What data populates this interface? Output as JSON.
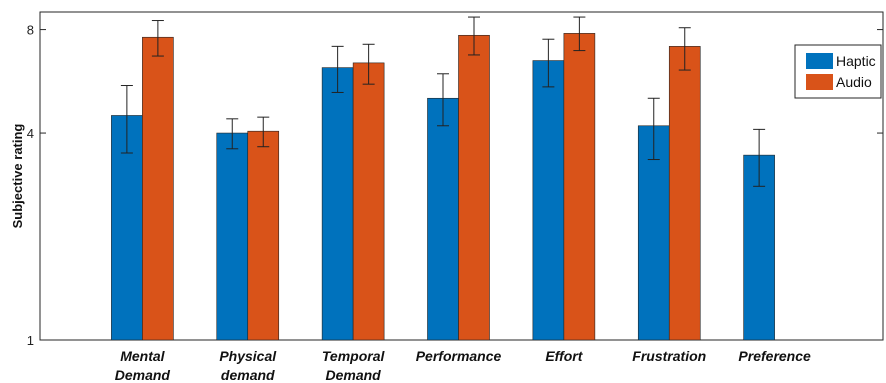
{
  "chart_data": {
    "type": "bar",
    "ylabel": "Subjective rating",
    "xlabel": "",
    "ylim": [
      1,
      9
    ],
    "yscale": "log",
    "yticks": [
      1,
      4,
      8
    ],
    "ytick_labels": [
      "1",
      "4",
      "8"
    ],
    "grid": false,
    "legend_position": "top-right",
    "categories": [
      [
        "Mental",
        "Demand"
      ],
      [
        "Physical",
        "demand"
      ],
      [
        "Temporal",
        "Demand"
      ],
      [
        "Performance"
      ],
      [
        "Effort"
      ],
      [
        "Frustration"
      ],
      [
        "Preference"
      ]
    ],
    "series": [
      {
        "name": "Haptic",
        "color": "#0072BD",
        "values": [
          4.5,
          4.0,
          6.2,
          5.05,
          6.5,
          4.2,
          3.45
        ],
        "error_low": [
          3.5,
          3.6,
          5.25,
          4.2,
          5.45,
          3.35,
          2.8
        ],
        "error_high": [
          5.5,
          4.4,
          7.15,
          5.95,
          7.5,
          5.05,
          4.1
        ]
      },
      {
        "name": "Audio",
        "color": "#D95319",
        "values": [
          7.6,
          4.05,
          6.4,
          7.7,
          7.8,
          7.15,
          null
        ],
        "error_low": [
          6.7,
          3.65,
          5.55,
          6.75,
          6.95,
          6.1,
          null
        ],
        "error_high": [
          8.5,
          4.45,
          7.25,
          8.7,
          8.7,
          8.1,
          null
        ]
      }
    ]
  }
}
